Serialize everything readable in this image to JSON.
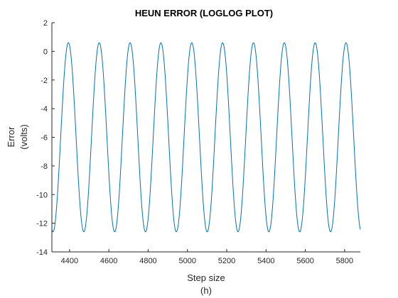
{
  "chart_data": {
    "type": "line",
    "title": "HEUN ERROR (LOGLOG PLOT)",
    "xlabel_lines": [
      "Step size",
      "(h)"
    ],
    "ylabel_lines": [
      "Error",
      "(volts)"
    ],
    "xlim": [
      4310,
      5880
    ],
    "ylim": [
      -14,
      2
    ],
    "xticks": [
      4400,
      4600,
      4800,
      5000,
      5200,
      5400,
      5600,
      5800
    ],
    "yticks": [
      -14,
      -12,
      -10,
      -8,
      -6,
      -4,
      -2,
      0,
      2
    ],
    "grid": false,
    "series": [
      {
        "color": "#0072BD",
        "shape": "sinusoid",
        "min": -12.6,
        "max": 0.6,
        "period": 157,
        "first_peak_x": 4394,
        "x_start": 4310,
        "x_end": 5880,
        "peaks_x": [
          4394,
          4551,
          4708,
          4865,
          5022,
          5179,
          5336,
          5493,
          5650,
          5807
        ],
        "troughs_x": [
          4472,
          4629,
          4786,
          4943,
          5100,
          5257,
          5414,
          5571,
          5728
        ]
      }
    ]
  }
}
